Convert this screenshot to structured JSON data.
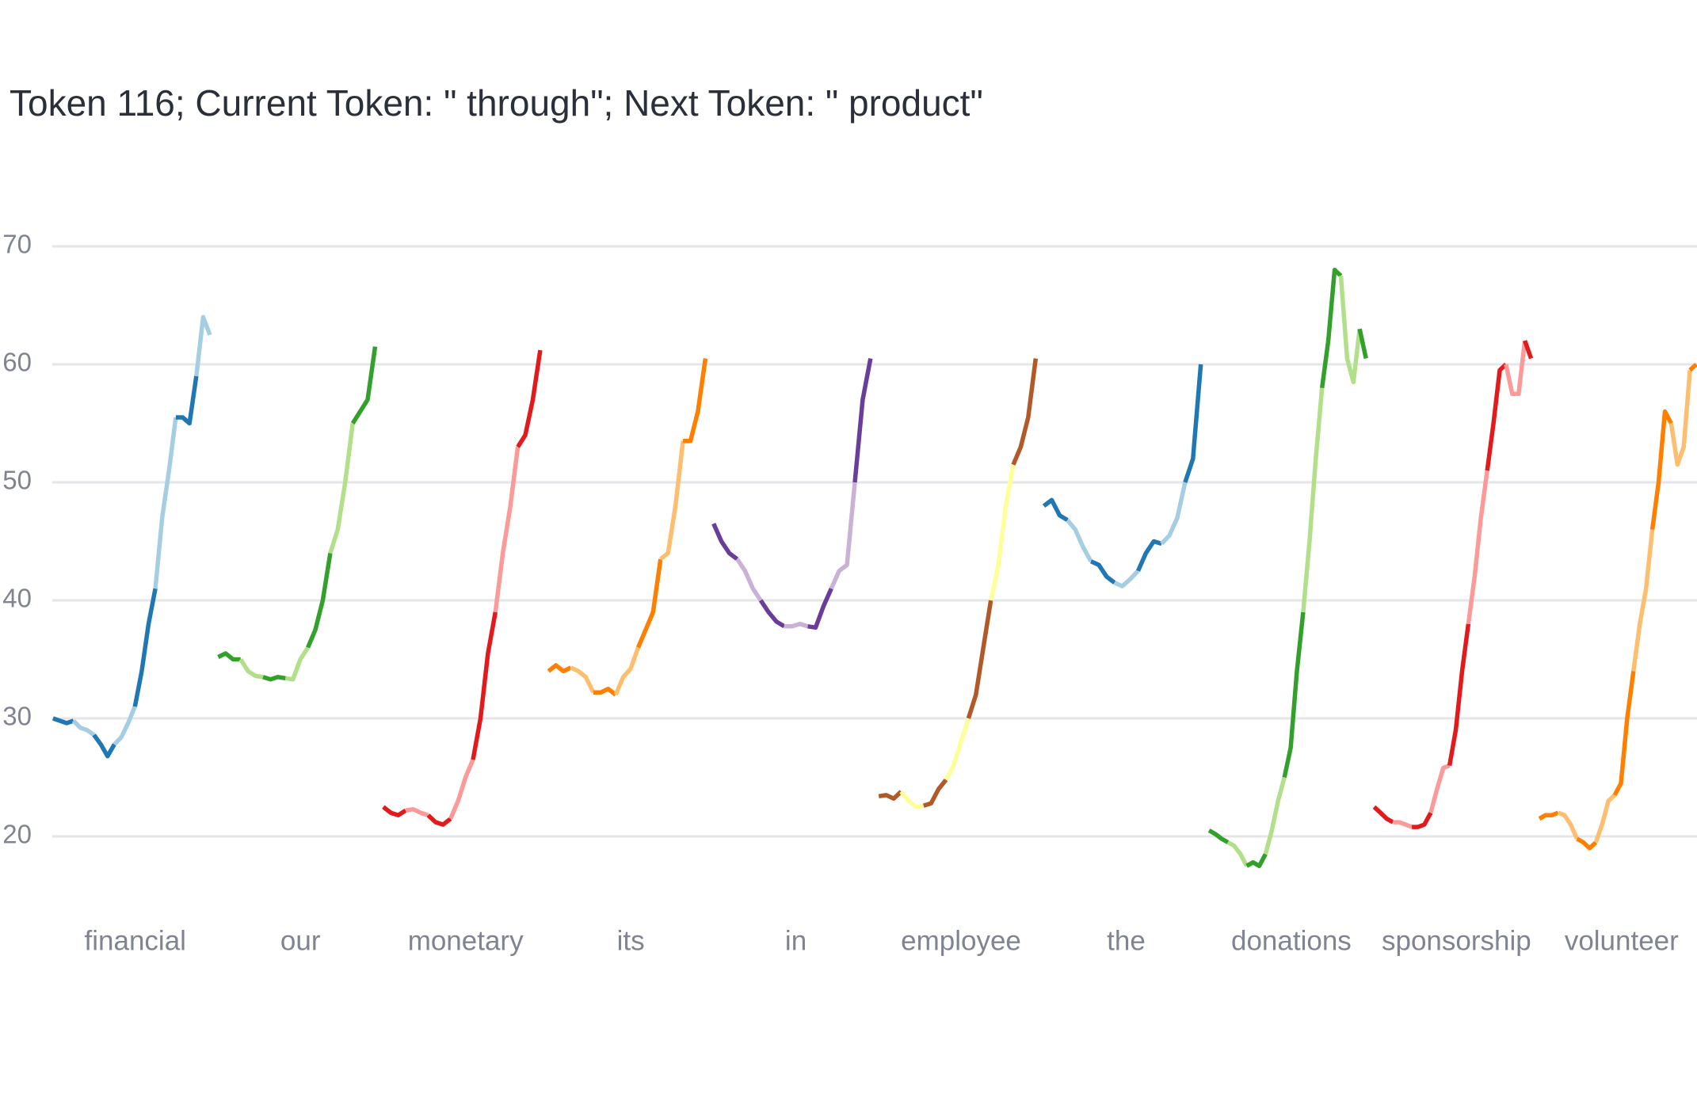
{
  "chart_data": {
    "type": "sparklines",
    "title": "Token 116; Current Token: \" through\"; Next Token: \" product\"",
    "ylim": [
      15,
      75
    ],
    "yticks": [
      20,
      30,
      40,
      50,
      60,
      70
    ],
    "grid": true,
    "series": [
      {
        "name": "financial",
        "colors": [
          "#1f78b4",
          "#a6cee3"
        ],
        "values": [
          30,
          29.8,
          29.6,
          29.8,
          29.2,
          29,
          28.6,
          27.8,
          26.8,
          27.8,
          28.4,
          29.6,
          31,
          34,
          38,
          41,
          47,
          51,
          55.5,
          55.5,
          55,
          59,
          64,
          62.5
        ]
      },
      {
        "name": "our",
        "colors": [
          "#33a02c",
          "#b2df8a"
        ],
        "values": [
          35.2,
          35.5,
          35,
          35,
          34,
          33.6,
          33.5,
          33.3,
          33.5,
          33.4,
          33.3,
          35,
          36,
          37.5,
          40,
          44,
          46,
          50,
          55,
          56,
          57,
          61.5
        ]
      },
      {
        "name": "monetary",
        "colors": [
          "#e31a1c",
          "#fb9a99"
        ],
        "values": [
          22.5,
          22,
          21.8,
          22.2,
          22.3,
          22,
          21.8,
          21.2,
          21,
          21.5,
          23,
          25,
          26.5,
          30,
          35.5,
          39,
          44,
          48,
          53,
          54,
          57,
          61.2
        ]
      },
      {
        "name": "its",
        "colors": [
          "#ff7f00",
          "#fdbf6f"
        ],
        "values": [
          34,
          34.5,
          34,
          34.3,
          34,
          33.5,
          32.2,
          32.2,
          32.5,
          32,
          33.5,
          34.2,
          36,
          37.5,
          39,
          43.5,
          44,
          48,
          53.5,
          53.5,
          56,
          60.5
        ]
      },
      {
        "name": "in",
        "colors": [
          "#6a3d9a",
          "#cab2d6"
        ],
        "values": [
          46.5,
          45,
          44,
          43.5,
          42.5,
          41,
          40,
          39,
          38.2,
          37.8,
          37.8,
          38,
          37.8,
          37.7,
          39.5,
          41,
          42.5,
          43,
          50,
          57,
          60.5
        ]
      },
      {
        "name": "employee",
        "colors": [
          "#b15928",
          "#ffff99"
        ],
        "values": [
          23.4,
          23.5,
          23.2,
          23.8,
          23,
          22.5,
          22.6,
          22.8,
          24,
          24.8,
          26,
          28,
          30,
          32,
          36,
          40,
          43,
          48,
          51.5,
          53,
          55.5,
          60.5
        ]
      },
      {
        "name": "the",
        "colors": [
          "#1f78b4",
          "#a6cee3"
        ],
        "values": [
          48,
          48.5,
          47.2,
          46.8,
          46,
          44.5,
          43.3,
          43,
          42,
          41.5,
          41.2,
          41.8,
          42.5,
          44,
          45,
          44.8,
          45.5,
          47,
          50,
          52,
          60
        ]
      },
      {
        "name": "donations",
        "colors": [
          "#33a02c",
          "#b2df8a"
        ],
        "values": [
          20.5,
          20.2,
          19.8,
          19.5,
          19.2,
          18.5,
          17.5,
          17.8,
          17.5,
          18.5,
          20.5,
          23,
          25,
          27.5,
          34,
          39,
          45,
          52,
          58,
          62,
          68,
          67.5,
          60.5,
          58.5,
          63,
          60.5
        ]
      },
      {
        "name": "sponsorship",
        "colors": [
          "#e31a1c",
          "#fb9a99"
        ],
        "values": [
          22.5,
          22,
          21.5,
          21.2,
          21.2,
          21,
          20.8,
          20.8,
          21,
          22,
          24,
          25.8,
          26,
          29,
          34,
          38,
          42,
          47,
          51,
          55,
          59.5,
          60,
          57.5,
          57.5,
          62,
          60.5
        ]
      },
      {
        "name": "volunteer",
        "colors": [
          "#ff7f00",
          "#fdbf6f"
        ],
        "values": [
          21.5,
          21.8,
          21.8,
          22,
          21.8,
          21,
          19.8,
          19.5,
          19,
          19.5,
          21,
          23,
          23.5,
          24.5,
          30,
          34,
          38,
          41,
          46,
          50,
          56,
          55,
          51.5,
          53,
          59.5,
          60
        ]
      }
    ]
  }
}
